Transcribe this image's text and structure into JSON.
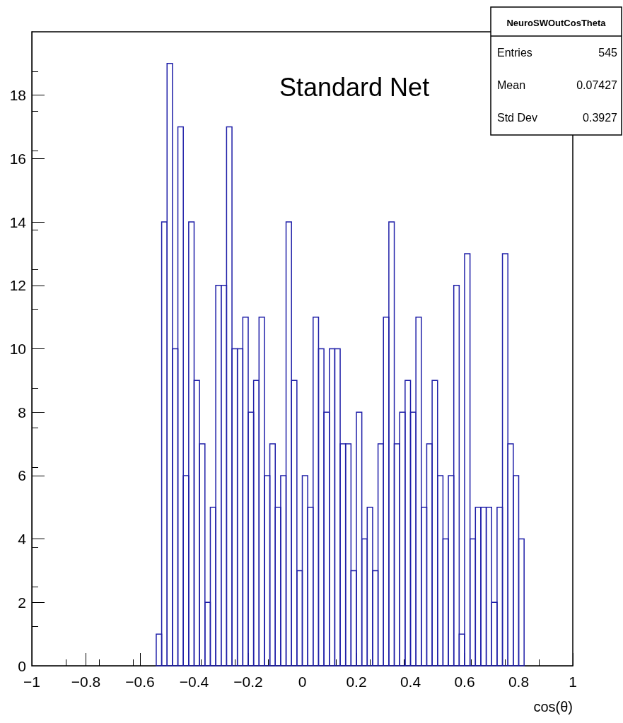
{
  "chart_data": {
    "type": "histogram",
    "xlabel": "cos(θ)",
    "color": "#1f1fa8",
    "bins": [
      -0.54,
      -0.52,
      -0.5,
      -0.48,
      -0.46,
      -0.44,
      -0.42,
      -0.4,
      -0.38,
      -0.36,
      -0.34,
      -0.32,
      -0.3,
      -0.28,
      -0.26,
      -0.24,
      -0.22,
      -0.2,
      -0.18,
      -0.16,
      -0.14,
      -0.12,
      -0.1,
      -0.08,
      -0.06,
      -0.04,
      -0.02,
      0,
      0.02,
      0.04,
      0.06,
      0.08,
      0.1,
      0.12,
      0.14,
      0.16,
      0.18,
      0.2,
      0.22,
      0.24,
      0.26,
      0.28,
      0.3,
      0.32,
      0.34,
      0.36,
      0.38,
      0.4,
      0.42,
      0.44,
      0.46,
      0.48,
      0.5,
      0.52,
      0.54,
      0.56,
      0.58,
      0.6,
      0.62,
      0.64,
      0.66,
      0.68,
      0.7,
      0.72,
      0.74,
      0.76,
      0.78,
      0.8,
      0.82
    ],
    "values": [
      1,
      14,
      19,
      10,
      17,
      6,
      14,
      9,
      7,
      2,
      5,
      12,
      12,
      17,
      10,
      10,
      11,
      8,
      9,
      11,
      6,
      7,
      5,
      6,
      14,
      9,
      3,
      6,
      5,
      11,
      10,
      8,
      10,
      10,
      7,
      7,
      3,
      8,
      4,
      5,
      3,
      7,
      11,
      14,
      7,
      8,
      9,
      8,
      11,
      5,
      7,
      9,
      6,
      4,
      6,
      12,
      1,
      13,
      4,
      5,
      5,
      5,
      2,
      5,
      13,
      7,
      6,
      4
    ],
    "xlim": [
      -1,
      1
    ],
    "xticks": [
      {
        "value": -1,
        "label": "−1"
      },
      {
        "value": -0.8,
        "label": "−0.8"
      },
      {
        "value": -0.6,
        "label": "−0.6"
      },
      {
        "value": -0.4,
        "label": "−0.4"
      },
      {
        "value": -0.2,
        "label": "−0.2"
      },
      0,
      0.2,
      0.4,
      0.6,
      0.8,
      1
    ],
    "ylim": [
      0,
      20
    ],
    "yticks": [
      0,
      2,
      4,
      6,
      8,
      10,
      12,
      14,
      16,
      18
    ],
    "grid": false,
    "annotations": [
      "Standard Net",
      "NeuroSWOutCosTheta",
      "Entries",
      "545",
      "Mean",
      "0.07427",
      "Std Dev",
      "0.3927"
    ]
  }
}
